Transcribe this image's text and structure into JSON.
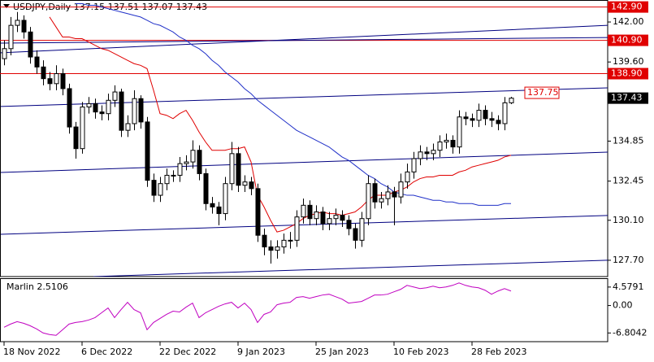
{
  "chart_data": {
    "type": "candlestick",
    "title": "USDJPY,Daily  137.15 137.51 137.07 137.43",
    "categories": [
      "18 Nov 2022",
      null,
      null,
      null,
      null,
      null,
      null,
      null,
      null,
      null,
      null,
      null,
      "6 Dec 2022",
      null,
      null,
      null,
      null,
      null,
      null,
      null,
      null,
      null,
      null,
      null,
      "22 Dec 2022",
      null,
      null,
      null,
      null,
      null,
      null,
      null,
      null,
      null,
      null,
      null,
      "9 Jan 2023",
      null,
      null,
      null,
      null,
      null,
      null,
      null,
      null,
      null,
      null,
      null,
      "25 Jan 2023",
      null,
      null,
      null,
      null,
      null,
      null,
      null,
      null,
      null,
      null,
      null,
      "10 Feb 2023",
      null,
      null,
      null,
      null,
      null,
      null,
      null,
      null,
      null,
      null,
      null,
      "28 Feb 2023",
      null,
      null,
      null,
      null,
      null,
      null
    ],
    "open": [
      139.8,
      140.4,
      141.8,
      142.1,
      141.4,
      139.9,
      139.3,
      138.6,
      138.3,
      138.9,
      138.0,
      135.7,
      134.4,
      136.9,
      137.1,
      136.6,
      136.5,
      137.3,
      137.8,
      135.5,
      135.9,
      137.4,
      136.0,
      132.5,
      131.6,
      132.3,
      132.8,
      132.8,
      133.5,
      133.6,
      134.3,
      132.9,
      131.1,
      130.9,
      130.5,
      132.3,
      134.1,
      132.2,
      132.4,
      132.0,
      129.2,
      128.5,
      128.3,
      128.5,
      128.9,
      128.9,
      130.3,
      131.0,
      130.2,
      130.6,
      129.9,
      130.2,
      130.4,
      130.1,
      129.6,
      128.9,
      130.2,
      132.3,
      131.2,
      131.4,
      131.8,
      131.5,
      132.4,
      133.0,
      133.8,
      134.2,
      134.1,
      134.3,
      134.8,
      134.9,
      134.5,
      136.3,
      136.2,
      136.1,
      136.7,
      136.2,
      136.1,
      135.9,
      137.15
    ],
    "high": [
      140.9,
      142.3,
      142.6,
      142.4,
      141.7,
      140.3,
      139.7,
      139.0,
      139.4,
      139.2,
      138.3,
      136.0,
      137.2,
      137.5,
      137.4,
      137.0,
      137.7,
      138.2,
      138.0,
      136.4,
      137.9,
      137.6,
      136.3,
      132.9,
      132.7,
      133.2,
      133.1,
      133.9,
      134.0,
      134.9,
      134.6,
      133.2,
      131.5,
      131.2,
      132.7,
      134.8,
      134.5,
      132.8,
      132.7,
      132.3,
      129.6,
      128.9,
      128.9,
      129.3,
      129.4,
      130.7,
      131.4,
      131.3,
      131.0,
      130.9,
      130.6,
      130.8,
      130.7,
      130.4,
      129.9,
      130.6,
      132.8,
      132.6,
      131.8,
      132.2,
      132.1,
      132.9,
      133.5,
      134.2,
      134.6,
      134.5,
      134.7,
      135.2,
      135.3,
      135.2,
      136.7,
      136.6,
      136.5,
      137.1,
      137.0,
      136.6,
      136.4,
      137.5,
      137.51
    ],
    "low": [
      139.4,
      140.0,
      141.4,
      141.0,
      139.5,
      138.9,
      138.2,
      137.9,
      137.9,
      137.6,
      135.3,
      133.8,
      134.1,
      136.5,
      136.2,
      136.1,
      136.1,
      136.9,
      135.1,
      135.1,
      135.5,
      135.6,
      132.1,
      131.2,
      131.2,
      131.9,
      132.4,
      132.4,
      133.1,
      133.2,
      132.5,
      130.7,
      130.5,
      129.8,
      130.1,
      131.9,
      131.8,
      131.8,
      131.6,
      128.8,
      128.0,
      127.5,
      127.8,
      128.1,
      128.4,
      128.5,
      129.9,
      129.8,
      129.8,
      129.5,
      129.5,
      129.8,
      129.7,
      129.2,
      128.4,
      128.5,
      129.8,
      130.8,
      130.8,
      131.0,
      129.8,
      131.1,
      132.0,
      132.6,
      133.4,
      133.7,
      133.7,
      133.9,
      134.4,
      134.1,
      134.1,
      135.8,
      135.7,
      135.7,
      135.8,
      135.7,
      135.5,
      135.5,
      137.07
    ],
    "close": [
      140.4,
      141.8,
      142.1,
      141.4,
      139.9,
      139.3,
      138.6,
      138.3,
      138.9,
      138.0,
      135.7,
      134.4,
      136.9,
      137.1,
      136.6,
      136.5,
      137.3,
      137.8,
      135.5,
      135.9,
      137.4,
      136.0,
      132.5,
      131.6,
      132.3,
      132.8,
      132.8,
      133.5,
      133.6,
      134.3,
      132.9,
      131.1,
      130.9,
      130.5,
      132.3,
      134.1,
      132.2,
      132.4,
      132.0,
      129.2,
      128.5,
      128.3,
      128.5,
      128.9,
      128.9,
      130.3,
      131.0,
      130.2,
      130.6,
      129.9,
      130.2,
      130.4,
      130.1,
      129.6,
      128.9,
      130.2,
      132.3,
      131.2,
      131.4,
      131.8,
      131.5,
      132.4,
      133.0,
      133.8,
      134.2,
      134.1,
      134.3,
      134.8,
      134.9,
      134.5,
      136.3,
      136.2,
      136.1,
      136.7,
      136.2,
      136.1,
      135.9,
      137.15,
      137.43
    ],
    "up_color": "#ffffff",
    "down_color": "#000000",
    "ylim": [
      126.72,
      143.32
    ],
    "yticks": [
      {
        "value": 142,
        "label": "142.00"
      },
      {
        "value": 139.6,
        "label": "139.60"
      },
      {
        "value": 134.85,
        "label": "134.85"
      },
      {
        "value": 132.45,
        "label": "132.45"
      },
      {
        "value": 130.1,
        "label": "130.10"
      },
      {
        "value": 127.7,
        "label": "127.70"
      }
    ],
    "lines": [
      {
        "color": "#e00000",
        "values": [
          null,
          null,
          null,
          null,
          null,
          null,
          null,
          142.3,
          141.7,
          141.1,
          141.1,
          141.0,
          141.0,
          140.8,
          140.6,
          140.4,
          140.3,
          140.1,
          139.9,
          139.7,
          139.5,
          139.4,
          139.2,
          137.9,
          136.5,
          136.4,
          136.2,
          136.5,
          136.7,
          136.1,
          135.4,
          134.8,
          134.3,
          134.3,
          134.3,
          134.4,
          134.4,
          134.5,
          133.6,
          131.6,
          130.9,
          130.1,
          129.4,
          129.5,
          129.7,
          129.9,
          130.2,
          130.4,
          130.5,
          130.6,
          130.5,
          130.5,
          130.4,
          130.5,
          130.6,
          130.9,
          131.3,
          131.6,
          131.6,
          131.6,
          131.8,
          131.9,
          132.1,
          132.4,
          132.6,
          132.7,
          132.7,
          132.8,
          132.8,
          132.8,
          133.0,
          133.1,
          133.3,
          133.4,
          133.5,
          133.6,
          133.7,
          133.9,
          134.0
        ]
      },
      {
        "color": "#2030c8",
        "values": [
          null,
          null,
          null,
          null,
          null,
          null,
          null,
          null,
          null,
          null,
          null,
          143.1,
          143.1,
          143.0,
          143.0,
          142.9,
          142.8,
          142.7,
          142.6,
          142.5,
          142.4,
          142.3,
          142.1,
          141.9,
          141.8,
          141.6,
          141.4,
          141.1,
          140.9,
          140.6,
          140.4,
          140.1,
          139.7,
          139.4,
          139.0,
          138.7,
          138.4,
          138.0,
          137.7,
          137.3,
          137.0,
          136.7,
          136.4,
          136.1,
          135.8,
          135.5,
          135.3,
          135.1,
          134.9,
          134.7,
          134.5,
          134.2,
          133.9,
          133.7,
          133.4,
          133.1,
          132.8,
          132.6,
          132.3,
          132.1,
          131.8,
          131.7,
          131.6,
          131.6,
          131.5,
          131.4,
          131.3,
          131.3,
          131.2,
          131.2,
          131.1,
          131.1,
          131.1,
          131.0,
          131.0,
          131.0,
          131.0,
          131.1,
          131.1
        ]
      }
    ],
    "trendlines": [
      {
        "x": [
          -0.625,
          92.875
        ],
        "y": [
          140.15,
          141.8
        ]
      },
      {
        "x": [
          -0.625,
          92.875
        ],
        "y": [
          140.73,
          141.07
        ]
      },
      {
        "x": [
          -0.625,
          92.875
        ],
        "y": [
          136.93,
          138.05
        ]
      },
      {
        "x": [
          -0.625,
          92.875
        ],
        "y": [
          132.97,
          134.19
        ]
      },
      {
        "x": [
          -0.625,
          92.875
        ],
        "y": [
          129.26,
          130.39
        ]
      },
      {
        "x": [
          13.75,
          92.875
        ],
        "y": [
          126.72,
          127.7
        ]
      }
    ],
    "trendline_color": "#000080",
    "levels": [
      {
        "value": 142.9,
        "label": "142.90"
      },
      {
        "value": 140.9,
        "label": "140.90"
      },
      {
        "value": 138.9,
        "label": "138.90"
      }
    ],
    "level_color": "#e00000",
    "price_marker": {
      "value": 137.75,
      "label": "137.75"
    },
    "last_price": {
      "value": 137.43,
      "label": "137.43"
    },
    "grid": false,
    "indicator": {
      "type": "line",
      "title": "Marlin 2.5106",
      "color": "#c000c0",
      "values": [
        -5.4,
        -4.6,
        -4.0,
        -4.4,
        -5.0,
        -5.8,
        -6.8,
        -7.2,
        -7.4,
        -6.0,
        -4.6,
        -4.2,
        -4.0,
        -3.6,
        -3.0,
        -1.8,
        -0.6,
        -3.0,
        -1.0,
        0.8,
        -1.0,
        -1.8,
        -6.0,
        -4.2,
        -3.2,
        -2.2,
        -1.4,
        -1.6,
        -0.4,
        0.6,
        -3.0,
        -1.8,
        -1.0,
        -0.2,
        0.4,
        0.8,
        -0.6,
        0.6,
        -1.0,
        -4.2,
        -2.2,
        -1.6,
        0.2,
        0.6,
        0.8,
        2.0,
        2.2,
        1.8,
        2.2,
        2.6,
        2.8,
        2.2,
        1.6,
        0.6,
        0.8,
        1.0,
        1.8,
        2.6,
        2.6,
        2.8,
        3.4,
        4.0,
        5.0,
        4.6,
        4.2,
        4.4,
        4.8,
        4.4,
        4.6,
        5.0,
        5.6,
        5.0,
        4.6,
        4.4,
        3.8,
        2.8,
        3.6,
        4.2,
        3.6
      ],
      "ylim": [
        -8.96,
        6.57
      ],
      "yticks": [
        4.5791,
        {
          "value": 0,
          "label": "0.00"
        },
        -6.8042
      ]
    }
  }
}
